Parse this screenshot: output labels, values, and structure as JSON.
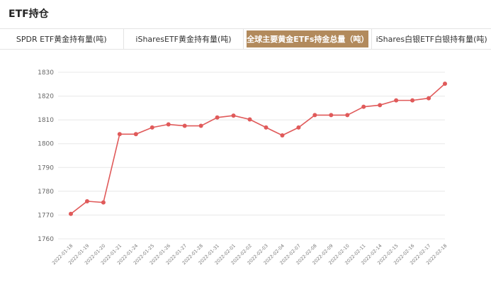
{
  "page": {
    "title": "ETF持仓"
  },
  "tabs": [
    {
      "label": "SPDR ETF黄金持有量(吨)",
      "active": false
    },
    {
      "label": "iSharesETF黄金持有量(吨)",
      "active": false
    },
    {
      "label": "全球主要黄金ETFs持金总量（吨）",
      "active": true
    },
    {
      "label": "iShares白银ETF白银持有量(吨)",
      "active": false
    }
  ],
  "colors": {
    "accent": "#b28a5c",
    "line": "#e05a5a",
    "grid": "#e8e8e8"
  },
  "chart_data": {
    "type": "line",
    "title": "",
    "xlabel": "",
    "ylabel": "",
    "ylim": [
      1760,
      1830
    ],
    "yticks": [
      1760,
      1770,
      1780,
      1790,
      1800,
      1810,
      1820,
      1830
    ],
    "grid": "horizontal",
    "categories": [
      "2022-01-18",
      "2022-01-19",
      "2022-01-20",
      "2022-01-21",
      "2022-01-24",
      "2022-01-25",
      "2022-01-26",
      "2022-01-27",
      "2022-01-28",
      "2022-01-31",
      "2022-02-01",
      "2022-02-02",
      "2022-02-03",
      "2022-02-04",
      "2022-02-07",
      "2022-02-08",
      "2022-02-09",
      "2022-02-10",
      "2022-02-11",
      "2022-02-14",
      "2022-02-15",
      "2022-02-16",
      "2022-02-17",
      "2022-02-18"
    ],
    "series": [
      {
        "values": [
          1770.5,
          1775.8,
          1775.3,
          1804.0,
          1804.0,
          1806.8,
          1808.1,
          1807.5,
          1807.5,
          1811.0,
          1811.8,
          1810.2,
          1806.8,
          1803.5,
          1806.8,
          1812.0,
          1812.0,
          1812.0,
          1815.5,
          1816.2,
          1818.2,
          1818.2,
          1819.1,
          1825.2
        ]
      }
    ]
  }
}
